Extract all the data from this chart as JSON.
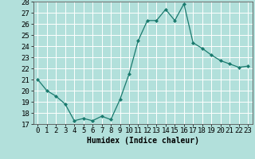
{
  "x": [
    0,
    1,
    2,
    3,
    4,
    5,
    6,
    7,
    8,
    9,
    10,
    11,
    12,
    13,
    14,
    15,
    16,
    17,
    18,
    19,
    20,
    21,
    22,
    23
  ],
  "y": [
    21,
    20,
    19.5,
    18.8,
    17.3,
    17.5,
    17.3,
    17.7,
    17.4,
    19.2,
    21.5,
    24.5,
    26.3,
    26.3,
    27.3,
    26.3,
    27.8,
    24.3,
    23.8,
    23.2,
    22.7,
    22.4,
    22.1,
    22.2
  ],
  "line_color": "#1a7a6e",
  "marker": "D",
  "marker_size": 2,
  "bg_color": "#b2e0db",
  "grid_color": "#ffffff",
  "xlabel": "Humidex (Indice chaleur)",
  "ylim": [
    17,
    28
  ],
  "xlim": [
    -0.5,
    23.5
  ],
  "yticks": [
    17,
    18,
    19,
    20,
    21,
    22,
    23,
    24,
    25,
    26,
    27,
    28
  ],
  "xticks": [
    0,
    1,
    2,
    3,
    4,
    5,
    6,
    7,
    8,
    9,
    10,
    11,
    12,
    13,
    14,
    15,
    16,
    17,
    18,
    19,
    20,
    21,
    22,
    23
  ],
  "xlabel_fontsize": 7,
  "tick_fontsize": 6.5
}
